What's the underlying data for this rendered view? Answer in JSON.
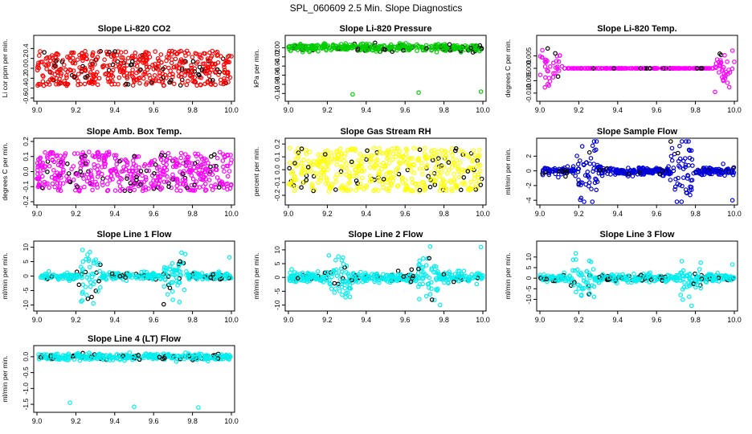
{
  "figure_title": "SPL_060609  2.5 Min. Slope Diagnostics",
  "chart_data": [
    {
      "type": "scatter",
      "title": "Slope Li-820 CO2",
      "ylabel": "Li cor ppm per min.",
      "color": "#ff0000",
      "xlim": [
        9.0,
        10.0
      ],
      "ylim": [
        -0.6,
        0.6
      ],
      "xticks": [
        9.0,
        9.2,
        9.4,
        9.6,
        9.8,
        10.0
      ],
      "xtick_labels": [
        "9.0",
        "9.2",
        "9.4",
        "9.6",
        "9.8",
        "10.0"
      ],
      "yticks": [
        -0.6,
        -0.4,
        -0.2,
        0.0,
        0.2,
        0.4
      ],
      "ytick_labels": [
        "-0.6",
        "-0.4",
        "-0.2",
        "0.0",
        "0.2",
        "0.4"
      ],
      "pattern": "uniform",
      "spread": 0.35,
      "n": 500,
      "outliers": []
    },
    {
      "type": "scatter",
      "title": "Slope Li-820 Pressure",
      "ylabel": "kPa per min.",
      "color": "#00cc00",
      "xlim": [
        9.0,
        10.0
      ],
      "ylim": [
        -0.11,
        0.02
      ],
      "xticks": [
        9.0,
        9.2,
        9.4,
        9.6,
        9.8,
        10.0
      ],
      "xtick_labels": [
        "9.0",
        "9.2",
        "9.4",
        "9.6",
        "9.8",
        "10.0"
      ],
      "yticks": [
        -0.1,
        -0.08,
        -0.06,
        -0.04,
        -0.02,
        0.0
      ],
      "ytick_labels": [
        "-0.10",
        "-0.08",
        "-0.06",
        "-0.04",
        "-0.02",
        "0.00"
      ],
      "pattern": "band",
      "spread": 0.004,
      "n": 400,
      "outliers": [
        [
          9.33,
          -0.102
        ],
        [
          9.67,
          -0.098
        ],
        [
          9.99,
          -0.096
        ]
      ]
    },
    {
      "type": "scatter",
      "title": "Slope Li-820 Temp.",
      "ylabel": "degrees C per min.",
      "color": "#ff00ff",
      "xlim": [
        9.0,
        10.0
      ],
      "ylim": [
        -0.012,
        0.012
      ],
      "xticks": [
        9.0,
        9.2,
        9.4,
        9.6,
        9.8,
        10.0
      ],
      "xtick_labels": [
        "9.0",
        "9.2",
        "9.4",
        "9.6",
        "9.8",
        "10.0"
      ],
      "yticks": [
        -0.01,
        -0.005,
        0.0,
        0.005
      ],
      "ytick_labels": [
        "-0.010",
        "-0.005",
        "0.000",
        "0.005"
      ],
      "pattern": "edges",
      "spread": 0.004,
      "n": 300,
      "outliers": []
    },
    {
      "type": "scatter",
      "title": "Slope Amb. Box Temp.",
      "ylabel": "degrees C per min.",
      "color": "#ff00ff",
      "xlim": [
        9.0,
        10.0
      ],
      "ylim": [
        -0.2,
        0.2
      ],
      "xticks": [
        9.0,
        9.2,
        9.4,
        9.6,
        9.8,
        10.0
      ],
      "xtick_labels": [
        "9.0",
        "9.2",
        "9.4",
        "9.6",
        "9.8",
        "10.0"
      ],
      "yticks": [
        -0.2,
        -0.1,
        0.0,
        0.1,
        0.2
      ],
      "ytick_labels": [
        "-0.2",
        "-0.1",
        "0.0",
        "0.1",
        "0.2"
      ],
      "pattern": "uniform",
      "spread": 0.13,
      "n": 500,
      "outliers": []
    },
    {
      "type": "scatter",
      "title": "Slope Gas Stream RH",
      "ylabel": "percent per min.",
      "color": "#ffff00",
      "xlim": [
        9.0,
        10.0
      ],
      "ylim": [
        -0.25,
        0.22
      ],
      "xticks": [
        9.0,
        9.2,
        9.4,
        9.6,
        9.8,
        10.0
      ],
      "xtick_labels": [
        "9.0",
        "9.2",
        "9.4",
        "9.6",
        "9.8",
        "10.0"
      ],
      "yticks": [
        -0.2,
        -0.1,
        0.0,
        0.1,
        0.2
      ],
      "ytick_labels": [
        "-0.2",
        "-0.1",
        "0.0",
        "0.1",
        "0.2"
      ],
      "pattern": "uniform",
      "spread": 0.17,
      "n": 500,
      "outliers": []
    },
    {
      "type": "scatter",
      "title": "Slope Sample Flow",
      "ylabel": "ml/min per min.",
      "color": "#0000dd",
      "xlim": [
        9.0,
        10.0
      ],
      "ylim": [
        -4.2,
        4.0
      ],
      "xticks": [
        9.0,
        9.2,
        9.4,
        9.6,
        9.8,
        10.0
      ],
      "xtick_labels": [
        "9.0",
        "9.2",
        "9.4",
        "9.6",
        "9.8",
        "10.0"
      ],
      "yticks": [
        -4,
        -2,
        0,
        2
      ],
      "ytick_labels": [
        "-4",
        "-2",
        "0",
        "2"
      ],
      "pattern": "bursts",
      "spread": 0.25,
      "n": 450,
      "bursts": [
        [
          9.24,
          2.5
        ],
        [
          9.73,
          2.5
        ]
      ],
      "outliers": [
        [
          9.99,
          -4.0
        ]
      ]
    },
    {
      "type": "scatter",
      "title": "Slope Line 1 Flow",
      "ylabel": "ml/min per min.",
      "color": "#00eeee",
      "xlim": [
        9.0,
        10.0
      ],
      "ylim": [
        -11,
        11
      ],
      "xticks": [
        9.0,
        9.2,
        9.4,
        9.6,
        9.8,
        10.0
      ],
      "xtick_labels": [
        "9.0",
        "9.2",
        "9.4",
        "9.6",
        "9.8",
        "10.0"
      ],
      "yticks": [
        -10,
        -5,
        0,
        5,
        10
      ],
      "ytick_labels": [
        "-10",
        "-5",
        "0",
        "5",
        "10"
      ],
      "pattern": "bursts",
      "spread": 0.6,
      "n": 400,
      "bursts": [
        [
          9.27,
          5
        ],
        [
          9.71,
          4
        ]
      ],
      "outliers": [
        [
          9.29,
          -9.5
        ],
        [
          9.99,
          6.5
        ]
      ]
    },
    {
      "type": "scatter",
      "title": "Slope Line 2 Flow",
      "ylabel": "ml/min per min.",
      "color": "#00eeee",
      "xlim": [
        9.0,
        10.0
      ],
      "ylim": [
        -11,
        12
      ],
      "xticks": [
        9.0,
        9.2,
        9.4,
        9.6,
        9.8,
        10.0
      ],
      "xtick_labels": [
        "9.0",
        "9.2",
        "9.4",
        "9.6",
        "9.8",
        "10.0"
      ],
      "yticks": [
        -10,
        -5,
        0,
        5,
        10
      ],
      "ytick_labels": [
        "-10",
        "-5",
        "0",
        "5",
        "10"
      ],
      "pattern": "bursts",
      "spread": 0.9,
      "n": 450,
      "bursts": [
        [
          9.26,
          4
        ],
        [
          9.72,
          4
        ]
      ],
      "outliers": [
        [
          9.78,
          -10
        ],
        [
          9.99,
          11
        ]
      ]
    },
    {
      "type": "scatter",
      "title": "Slope Line 3 Flow",
      "ylabel": "ml/min per min.",
      "color": "#00eeee",
      "xlim": [
        9.0,
        10.0
      ],
      "ylim": [
        -14,
        16
      ],
      "xticks": [
        9.0,
        9.2,
        9.4,
        9.6,
        9.8,
        10.0
      ],
      "xtick_labels": [
        "9.0",
        "9.2",
        "9.4",
        "9.6",
        "9.8",
        "10.0"
      ],
      "yticks": [
        -10,
        -5,
        0,
        5,
        10
      ],
      "ytick_labels": [
        "-10",
        "-5",
        "0",
        "5",
        "10"
      ],
      "pattern": "bursts",
      "spread": 0.9,
      "n": 450,
      "bursts": [
        [
          9.22,
          4.5
        ],
        [
          9.77,
          4
        ]
      ],
      "outliers": [
        [
          9.78,
          -13
        ],
        [
          9.99,
          6.5
        ]
      ]
    },
    {
      "type": "scatter",
      "title": "Slope Line 4 (LT) Flow",
      "ylabel": "ml/min per min.",
      "color": "#00eeee",
      "xlim": [
        9.0,
        10.0
      ],
      "ylim": [
        -1.65,
        0.25
      ],
      "xticks": [
        9.0,
        9.2,
        9.4,
        9.6,
        9.8,
        10.0
      ],
      "xtick_labels": [
        "9.0",
        "9.2",
        "9.4",
        "9.6",
        "9.8",
        "10.0"
      ],
      "yticks": [
        -1.5,
        -1.0,
        -0.5,
        0.0
      ],
      "ytick_labels": [
        "-1.5",
        "-1.0",
        "-0.5",
        "0.0"
      ],
      "pattern": "band",
      "spread": 0.05,
      "n": 400,
      "outliers": [
        [
          9.17,
          -1.45
        ],
        [
          9.5,
          -1.58
        ],
        [
          9.83,
          -1.6
        ]
      ]
    }
  ]
}
